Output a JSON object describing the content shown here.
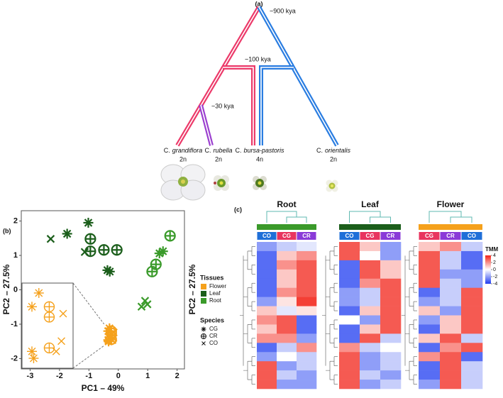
{
  "panel_a": {
    "label": "(a)",
    "annotations": [
      "~900 kya",
      "~100 kya",
      "~30 kya"
    ],
    "tips": [
      {
        "genus": "C.",
        "species": "grandiflora",
        "ploidy": "2n"
      },
      {
        "genus": "C.",
        "species": "rubella",
        "ploidy": "2n"
      },
      {
        "genus": "C.",
        "species": "bursa-pastoris",
        "ploidy": "4n"
      },
      {
        "genus": "C.",
        "species": "orientalis",
        "ploidy": "2n"
      }
    ]
  },
  "panel_b": {
    "label": "(b)",
    "type": "scatter",
    "xlabel": "PC1 – 49%",
    "ylabel": "PC2 – 27.5%",
    "side_label": "PC2 – 27.5%",
    "xlim": [
      -3.3,
      2.25
    ],
    "ylim": [
      -2.3,
      2.3
    ],
    "xticks": [
      -3,
      -2,
      -1,
      0,
      1,
      2
    ],
    "yticks": [
      -2,
      -1,
      0,
      1,
      2
    ],
    "legend": {
      "tissues_title": "Tissues",
      "species_title": "Species",
      "species": [
        "CG",
        "CR",
        "CO"
      ]
    },
    "series": [
      {
        "name": "Flower",
        "color": "#f5a11c",
        "points": [
          {
            "species": "CG",
            "x": -0.3,
            "y": -1.12
          },
          {
            "species": "CG",
            "x": -0.34,
            "y": -1.2
          },
          {
            "species": "CG",
            "x": -0.34,
            "y": -1.46
          },
          {
            "species": "CG",
            "x": -0.33,
            "y": -1.5
          },
          {
            "species": "CR",
            "x": -0.24,
            "y": -1.2
          },
          {
            "species": "CR",
            "x": -0.24,
            "y": -1.26
          },
          {
            "species": "CR",
            "x": -0.24,
            "y": -1.44
          },
          {
            "species": "CO",
            "x": -0.16,
            "y": -1.24
          },
          {
            "species": "CO",
            "x": -0.17,
            "y": -1.4
          },
          {
            "species": "CO",
            "x": -0.2,
            "y": -1.46
          }
        ]
      },
      {
        "name": "Leaf",
        "color": "#1b5e1b",
        "points": [
          {
            "species": "CO",
            "x": -2.3,
            "y": 1.48
          },
          {
            "species": "CG",
            "x": -1.74,
            "y": 1.63
          },
          {
            "species": "CG",
            "x": -1.02,
            "y": 1.95
          },
          {
            "species": "CR",
            "x": -0.95,
            "y": 1.48
          },
          {
            "species": "CO",
            "x": -1.14,
            "y": 1.1
          },
          {
            "species": "CR",
            "x": -0.95,
            "y": 1.12
          },
          {
            "species": "CR",
            "x": -0.49,
            "y": 1.16
          },
          {
            "species": "CR",
            "x": -0.05,
            "y": 1.16
          },
          {
            "species": "CG",
            "x": -0.37,
            "y": 0.57
          },
          {
            "species": "CG",
            "x": -0.29,
            "y": 0.53
          }
        ]
      },
      {
        "name": "Root",
        "color": "#3a9a2a",
        "points": [
          {
            "species": "CR",
            "x": 1.76,
            "y": 1.57
          },
          {
            "species": "CG",
            "x": 1.4,
            "y": 1.06
          },
          {
            "species": "CG",
            "x": 1.52,
            "y": 1.12
          },
          {
            "species": "CR",
            "x": 1.28,
            "y": 0.74
          },
          {
            "species": "CR",
            "x": 1.15,
            "y": 0.53
          },
          {
            "species": "CO",
            "x": 0.91,
            "y": -0.32
          },
          {
            "species": "CO",
            "x": 0.79,
            "y": -0.49
          },
          {
            "species": "CO",
            "x": 0.99,
            "y": -0.42
          }
        ]
      }
    ]
  },
  "panel_c": {
    "label": "(c)",
    "colorbar": {
      "title": "TMM",
      "lim": [
        -4,
        4
      ],
      "ticks": [
        4,
        2,
        0,
        -2,
        -4
      ],
      "colors": [
        "#1f3cf0",
        "#ffffff",
        "#f22318"
      ]
    },
    "heatmaps": [
      {
        "title": "Root",
        "tissue_color": "#3a9a2a",
        "columns": [
          {
            "name": "CO",
            "color": "#1f6fd8"
          },
          {
            "name": "CG",
            "color": "#e8345f"
          },
          {
            "name": "CR",
            "color": "#8a3ad8"
          }
        ],
        "values": [
          [
            -2,
            -1,
            -0.5
          ],
          [
            -3,
            1,
            2
          ],
          [
            -3,
            2,
            3
          ],
          [
            -3,
            1,
            3
          ],
          [
            -3,
            1,
            3
          ],
          [
            -3,
            2,
            3
          ],
          [
            -2,
            0.5,
            3.5
          ],
          [
            1,
            -0.5,
            0.5
          ],
          [
            2,
            3,
            -3
          ],
          [
            1,
            3,
            -3
          ],
          [
            2,
            2,
            -2
          ],
          [
            -3,
            -1,
            2
          ],
          [
            -2,
            0,
            -1
          ],
          [
            3,
            -2,
            -1
          ],
          [
            3,
            -1,
            -2
          ],
          [
            3,
            -2,
            -2
          ]
        ]
      },
      {
        "title": "Leaf",
        "tissue_color": "#1b5e1b",
        "columns": [
          {
            "name": "CO",
            "color": "#1f6fd8"
          },
          {
            "name": "CG",
            "color": "#e8345f"
          },
          {
            "name": "CR",
            "color": "#8a3ad8"
          }
        ],
        "values": [
          [
            3,
            1,
            -2
          ],
          [
            3,
            0,
            -2
          ],
          [
            -3,
            3,
            1
          ],
          [
            -3,
            3,
            1
          ],
          [
            -3,
            2,
            3
          ],
          [
            -2,
            -1,
            3
          ],
          [
            -2,
            -1,
            3
          ],
          [
            -3,
            1,
            3
          ],
          [
            0,
            -2,
            3
          ],
          [
            -3,
            1,
            3
          ],
          [
            -3,
            3,
            -1
          ],
          [
            2,
            -1,
            0
          ],
          [
            3,
            -2,
            -1
          ],
          [
            3,
            -2,
            -1
          ],
          [
            3,
            -1,
            -2
          ],
          [
            3,
            -2,
            -1
          ]
        ]
      },
      {
        "title": "Flower",
        "tissue_color": "#f5a11c",
        "columns": [
          {
            "name": "CG",
            "color": "#e8345f"
          },
          {
            "name": "CR",
            "color": "#8a3ad8"
          },
          {
            "name": "CO",
            "color": "#1f6fd8"
          }
        ],
        "values": [
          [
            1,
            2,
            -1
          ],
          [
            3,
            -1,
            -3
          ],
          [
            3,
            -1,
            -3
          ],
          [
            3,
            -2,
            -2
          ],
          [
            3,
            -1,
            -2
          ],
          [
            -3,
            -1,
            3
          ],
          [
            -2,
            -1,
            3
          ],
          [
            1,
            -2,
            3
          ],
          [
            -2,
            1,
            3
          ],
          [
            -3,
            1,
            3
          ],
          [
            1,
            3,
            -1
          ],
          [
            -3,
            2,
            3
          ],
          [
            2,
            3,
            -3
          ],
          [
            -3,
            3,
            -1
          ],
          [
            -3,
            3,
            -1
          ],
          [
            -2,
            3,
            -1
          ]
        ]
      }
    ]
  }
}
